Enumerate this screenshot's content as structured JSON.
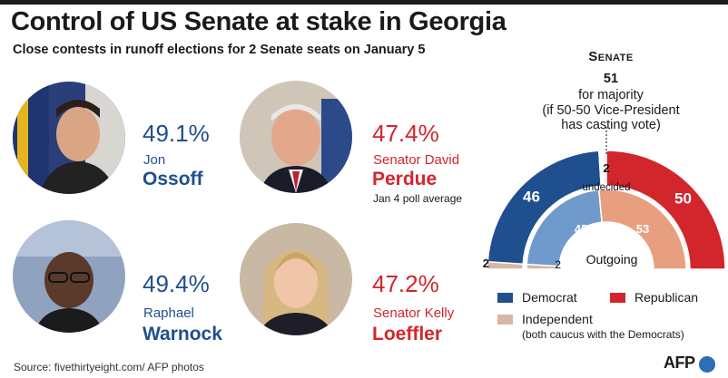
{
  "header": {
    "title": "Control of US Senate at stake in Georgia",
    "subtitle": "Close contests in runoff elections for 2 Senate seats on January 5"
  },
  "candidates": [
    {
      "party": "democrat",
      "percent": "49.1%",
      "name": "Jon",
      "last_name": "Ossoff"
    },
    {
      "party": "republican",
      "percent": "47.4%",
      "name": "Senator David",
      "last_name": "Perdue"
    },
    {
      "party": "democrat",
      "percent": "49.4%",
      "name": "Raphael",
      "last_name": "Warnock"
    },
    {
      "party": "republican",
      "percent": "47.2%",
      "name": "Senator Kelly",
      "last_name": "Loeffler"
    }
  ],
  "poll_note": "Jan 4 poll average",
  "chart_data": {
    "type": "semicircle-parliament",
    "title": "Senate",
    "majority_value": "51",
    "majority_label": "for majority",
    "majority_note_line1": "(if 50-50 Vice-President",
    "majority_note_line2": "has casting vote)",
    "new_senate": {
      "democrat": 46,
      "undecided": 2,
      "republican": 50,
      "independent": 2,
      "labels": {
        "democrat": "46",
        "undecided": "2",
        "undecided_text": "undecided",
        "republican": "50",
        "independent": "2"
      }
    },
    "outgoing_senate": {
      "label": "Outgoing",
      "democrat": 45,
      "republican": 53,
      "independent": 2,
      "labels": {
        "democrat": "45",
        "republican": "53",
        "independent": "2"
      }
    },
    "colors": {
      "democrat": "#1f4f8f",
      "republican": "#d2262c",
      "independent": "#d6b7a5",
      "democrat_light": "#6f9acb",
      "republican_light": "#e89f80",
      "undecided": "#ffffff"
    },
    "legend": {
      "democrat": "Democrat",
      "republican": "Republican",
      "independent": "Independent",
      "independent_note": "(both caucus with the Democrats)"
    }
  },
  "footer": {
    "source": "Source: fivethirtyeight.com/ AFP photos",
    "logo_text": "AFP"
  }
}
